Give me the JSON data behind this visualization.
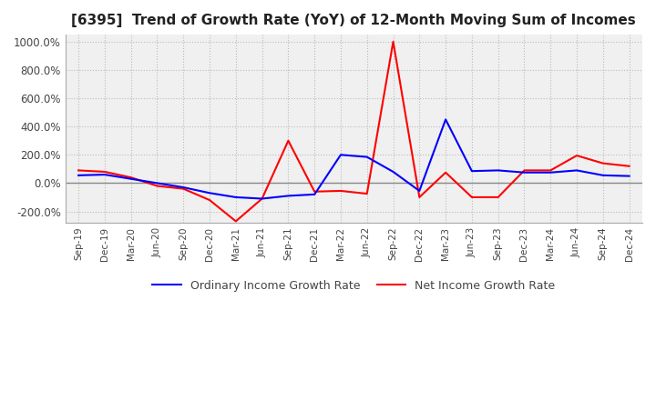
{
  "title": "[6395]  Trend of Growth Rate (YoY) of 12-Month Moving Sum of Incomes",
  "title_fontsize": 11,
  "ylim": [
    -280,
    1050
  ],
  "yticks": [
    -200,
    0,
    200,
    400,
    600,
    800,
    1000
  ],
  "ytick_labels": [
    "-200.0%",
    "0.0%",
    "200.0%",
    "400.0%",
    "600.0%",
    "800.0%",
    "1000.0%"
  ],
  "background_color": "#ffffff",
  "plot_bg_color": "#f0f0f0",
  "grid_color": "#bbbbbb",
  "legend_labels": [
    "Ordinary Income Growth Rate",
    "Net Income Growth Rate"
  ],
  "legend_colors": [
    "#0000ff",
    "#ff0000"
  ],
  "x_labels": [
    "Sep-19",
    "Dec-19",
    "Mar-20",
    "Jun-20",
    "Sep-20",
    "Dec-20",
    "Mar-21",
    "Jun-21",
    "Sep-21",
    "Dec-21",
    "Mar-22",
    "Jun-22",
    "Sep-22",
    "Dec-22",
    "Mar-23",
    "Jun-23",
    "Sep-23",
    "Dec-23",
    "Mar-24",
    "Jun-24",
    "Sep-24",
    "Dec-24"
  ],
  "ordinary_income_growth": [
    55,
    60,
    30,
    0,
    -30,
    -70,
    -100,
    -110,
    -90,
    -80,
    200,
    185,
    80,
    -55,
    450,
    85,
    90,
    75,
    75,
    90,
    55,
    50
  ],
  "net_income_growth": [
    90,
    80,
    40,
    -20,
    -40,
    -120,
    -270,
    -110,
    300,
    -60,
    -55,
    -75,
    1000,
    -100,
    75,
    -100,
    -100,
    90,
    90,
    195,
    140,
    120
  ]
}
